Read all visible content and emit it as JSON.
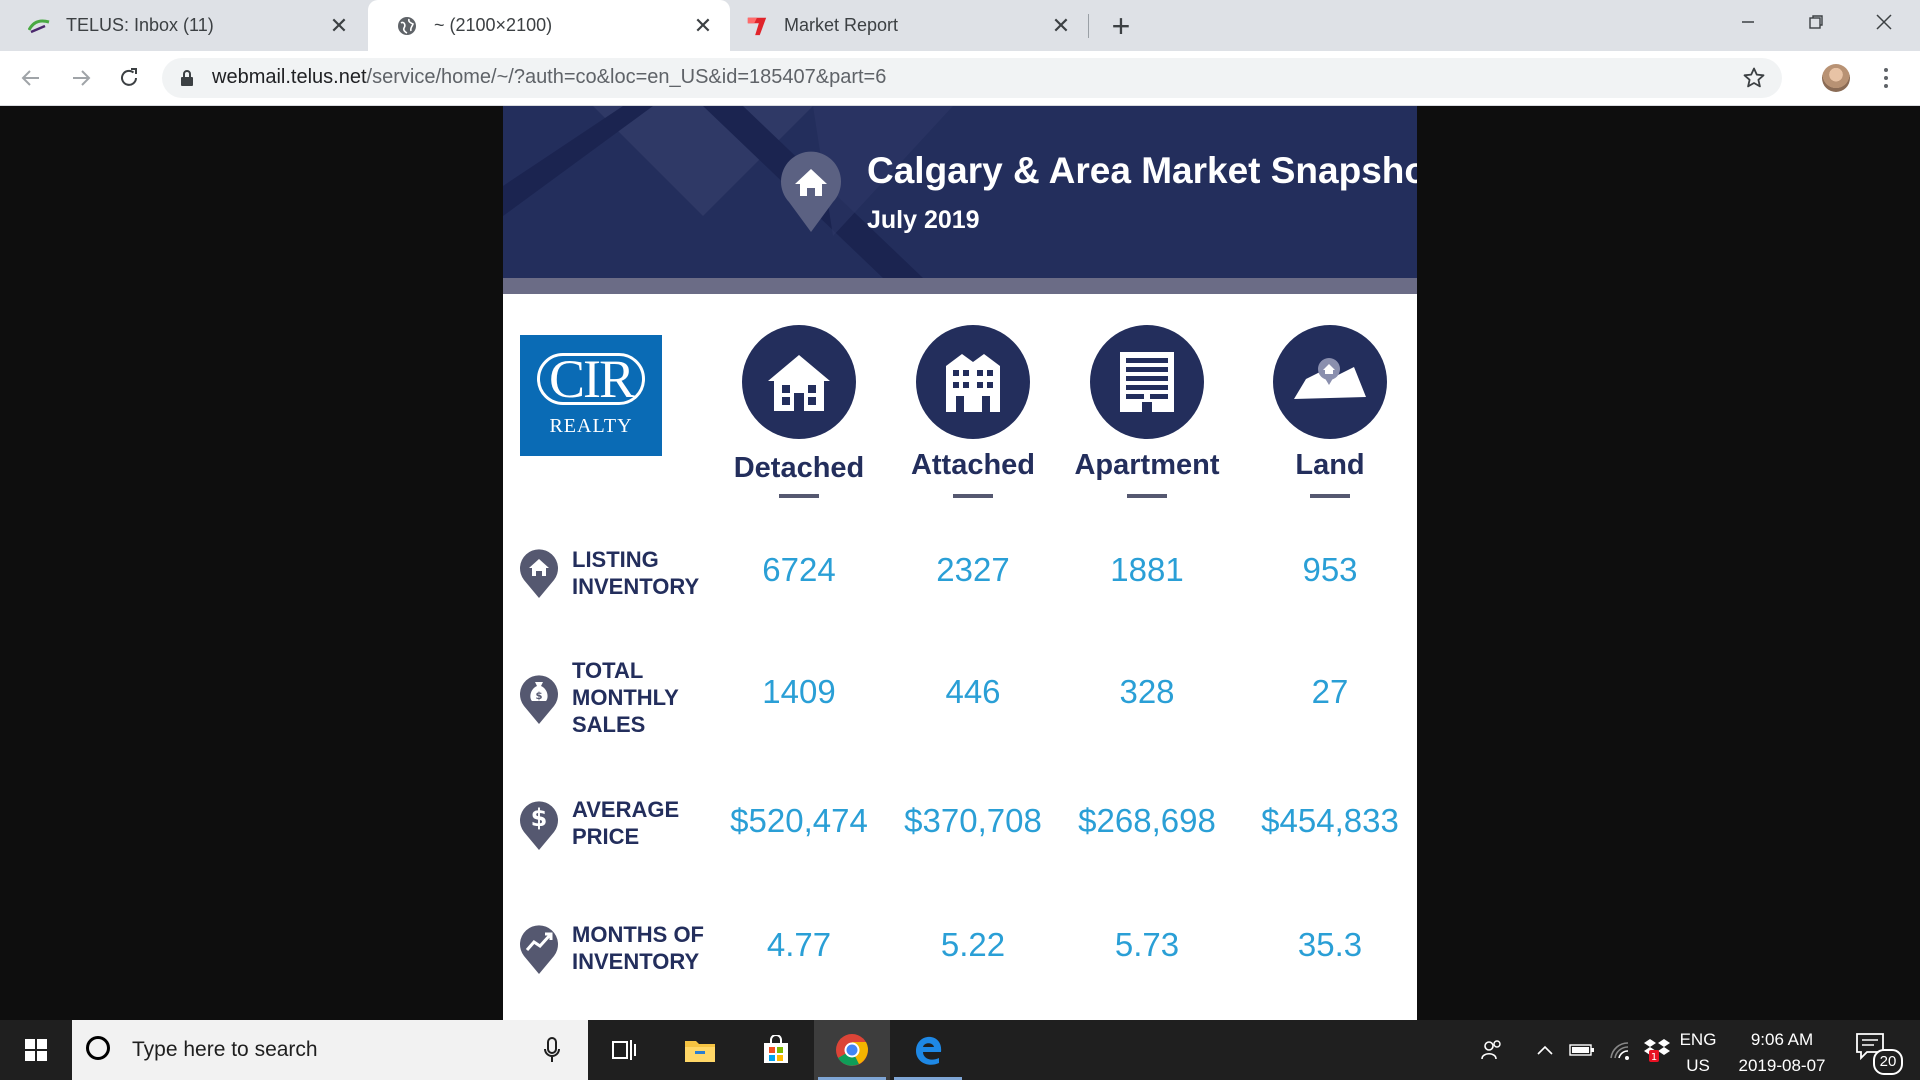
{
  "browser": {
    "tabs": [
      {
        "title": "TELUS: Inbox (11)",
        "icon": "telus-icon",
        "active": false
      },
      {
        "title": "~ (2100×2100)",
        "icon": "globe-icon",
        "active": true
      },
      {
        "title": "Market Report",
        "icon": "market-report-icon",
        "active": false
      }
    ],
    "url_host": "webmail.telus.net",
    "url_path": "/service/home/~/?auth=co&loc=en_US&id=185407&part=6"
  },
  "report": {
    "title": "Calgary & Area Market Snapshot",
    "subtitle": "July 2019",
    "logo": {
      "line1": "CIR",
      "line2": "REALTY"
    },
    "columns": [
      {
        "label": "Detached",
        "icon": "house-icon"
      },
      {
        "label": "Attached",
        "icon": "townhouse-icon"
      },
      {
        "label": "Apartment",
        "icon": "apartment-icon"
      },
      {
        "label": "Land",
        "icon": "land-icon"
      }
    ],
    "rows": [
      {
        "label_lines": [
          "LISTING",
          "INVENTORY"
        ],
        "icon": "house-pin-icon",
        "values": [
          "6724",
          "2327",
          "1881",
          "953"
        ]
      },
      {
        "label_lines": [
          "TOTAL",
          "MONTHLY",
          "SALES"
        ],
        "icon": "money-bag-pin-icon",
        "values": [
          "1409",
          "446",
          "328",
          "27"
        ]
      },
      {
        "label_lines": [
          "AVERAGE",
          "PRICE"
        ],
        "icon": "dollar-pin-icon",
        "values": [
          "$520,474",
          "$370,708",
          "$268,698",
          "$454,833"
        ]
      },
      {
        "label_lines": [
          "MONTHS OF",
          "INVENTORY"
        ],
        "icon": "trend-pin-icon",
        "values": [
          "4.77",
          "5.22",
          "5.73",
          "35.3"
        ]
      }
    ],
    "colors": {
      "navy": "#232e5c",
      "value_blue": "#2a9fd6",
      "logo_blue": "#0a6bb5"
    }
  },
  "taskbar": {
    "search_placeholder": "Type here to search",
    "lang_line1": "ENG",
    "lang_line2": "US",
    "time": "9:06 AM",
    "date": "2019-08-07",
    "notification_count": "20"
  }
}
